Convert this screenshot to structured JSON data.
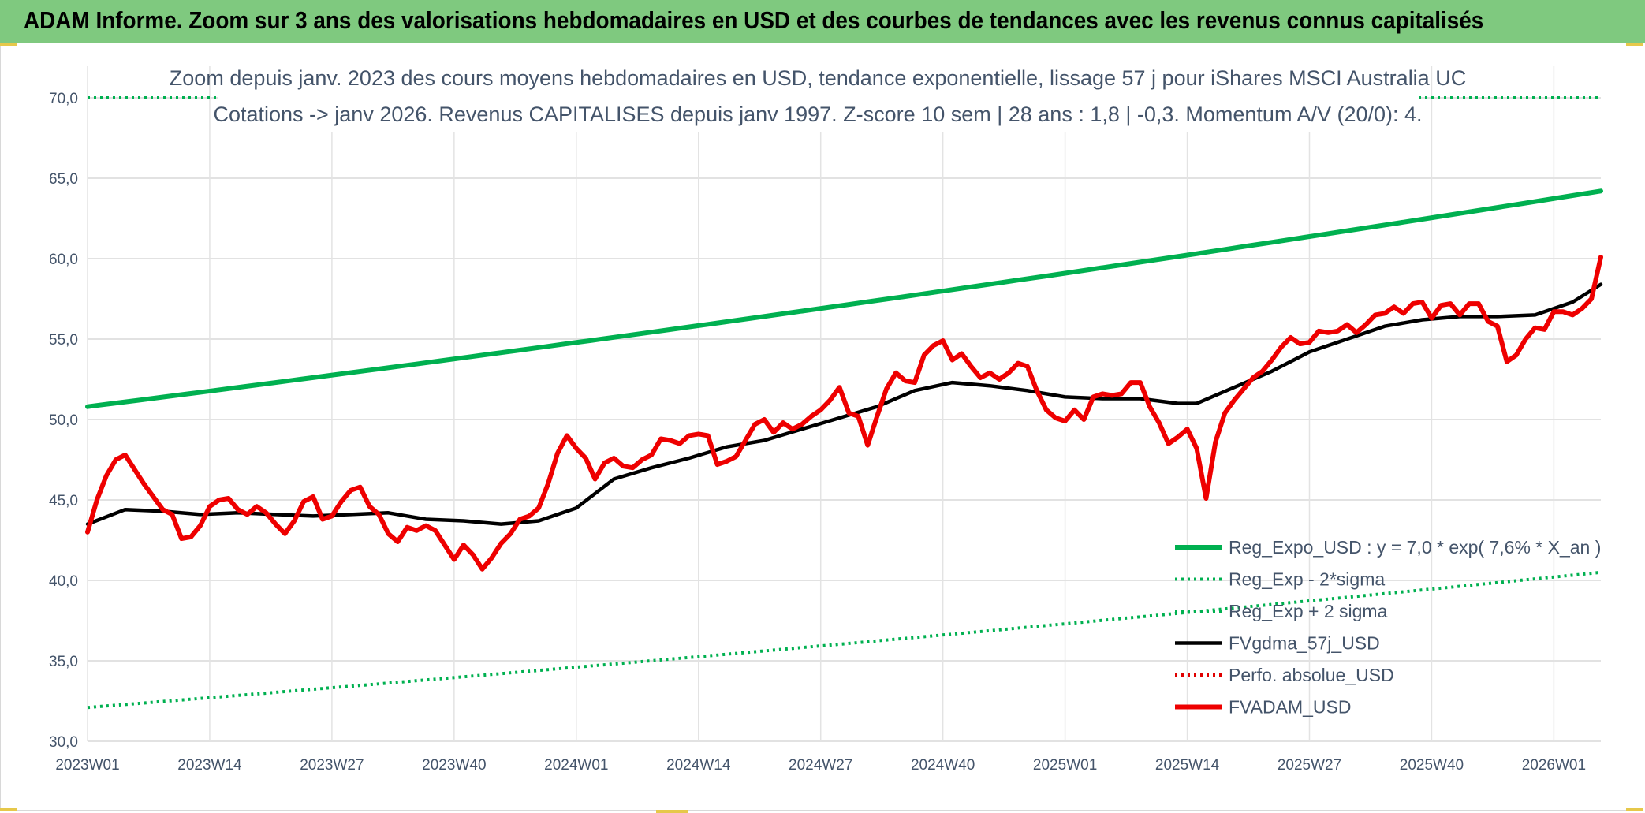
{
  "page_title": "ADAM Informe. Zoom sur 3 ans des valorisations hebdomadaires en USD et des courbes de tendances avec les revenus connus capitalisés",
  "chart_data": {
    "type": "line",
    "title_line1": "Zoom depuis janv. 2023 des cours moyens hebdomadaires en USD, tendance exponentielle, lissage 57 j pour iShares MSCI Australia UC",
    "title_line2": "Cotations -> janv 2026. Revenus CAPITALISES depuis janv 1997. Z-score 10 sem | 28 ans : 1,8 | -0,3. Momentum A/V (20/0): 4.",
    "x_tick_labels": [
      "2023W01",
      "2023W14",
      "2023W27",
      "2023W40",
      "2024W01",
      "2024W14",
      "2024W27",
      "2024W40",
      "2025W01",
      "2025W14",
      "2025W27",
      "2025W40",
      "2026W01"
    ],
    "x_range_weeks": [
      0,
      161
    ],
    "y_tick_labels": [
      "30,0",
      "35,0",
      "40,0",
      "45,0",
      "50,0",
      "55,0",
      "60,0",
      "65,0",
      "70,0"
    ],
    "ylim": [
      30,
      70
    ],
    "series": [
      {
        "name": "Reg_Expo_USD : y = 7,0 * exp( 7,6% *  X_an )",
        "color": "#00b050",
        "style": "solid-thick",
        "x": [
          0,
          161
        ],
        "values": [
          50.8,
          64.2
        ],
        "note": "exponential trend"
      },
      {
        "name": "Reg_Exp - 2*sigma",
        "color": "#00b050",
        "style": "dotted",
        "x": [
          0,
          161
        ],
        "values": [
          32.1,
          40.5
        ]
      },
      {
        "name": "Reg_Exp + 2 sigma",
        "color": "#00b050",
        "style": "dotted",
        "x": [
          0,
          161
        ],
        "values": [
          70.0,
          70.0
        ],
        "note": "clipped at top of axis"
      },
      {
        "name": "FVgdma_57j_USD",
        "color": "#000000",
        "style": "solid",
        "x": [
          0,
          4,
          8,
          12,
          16,
          20,
          24,
          28,
          32,
          36,
          40,
          44,
          48,
          52,
          56,
          60,
          64,
          68,
          72,
          76,
          80,
          84,
          88,
          92,
          96,
          100,
          104,
          108,
          112,
          116,
          118,
          122,
          126,
          130,
          134,
          138,
          142,
          146,
          150,
          154,
          158,
          161
        ],
        "values": [
          43.5,
          44.4,
          44.3,
          44.1,
          44.2,
          44.1,
          44.0,
          44.1,
          44.2,
          43.8,
          43.7,
          43.5,
          43.7,
          44.5,
          46.3,
          47.0,
          47.6,
          48.3,
          48.7,
          49.4,
          50.1,
          50.8,
          51.8,
          52.3,
          52.1,
          51.8,
          51.4,
          51.3,
          51.3,
          51.0,
          51.0,
          52.0,
          53.0,
          54.2,
          55.0,
          55.8,
          56.2,
          56.4,
          56.4,
          56.5,
          57.3,
          58.4
        ]
      },
      {
        "name": "Perfo. absolue_USD",
        "color": "#e00000",
        "style": "dotted",
        "x": [],
        "values": []
      },
      {
        "name": "FVADAM_USD",
        "color": "#ee0000",
        "style": "solid-thick",
        "x": [
          0,
          1,
          2,
          3,
          4,
          5,
          6,
          7,
          8,
          9,
          10,
          11,
          12,
          13,
          14,
          15,
          16,
          17,
          18,
          19,
          20,
          21,
          22,
          23,
          24,
          25,
          26,
          27,
          28,
          29,
          30,
          31,
          32,
          33,
          34,
          35,
          36,
          37,
          38,
          39,
          40,
          41,
          42,
          43,
          44,
          45,
          46,
          47,
          48,
          49,
          50,
          51,
          52,
          53,
          54,
          55,
          56,
          57,
          58,
          59,
          60,
          61,
          62,
          63,
          64,
          65,
          66,
          67,
          68,
          69,
          70,
          71,
          72,
          73,
          74,
          75,
          76,
          77,
          78,
          79,
          80,
          81,
          82,
          83,
          84,
          85,
          86,
          87,
          88,
          89,
          90,
          91,
          92,
          93,
          94,
          95,
          96,
          97,
          98,
          99,
          100,
          101,
          102,
          103,
          104,
          105,
          106,
          107,
          108,
          109,
          110,
          111,
          112,
          113,
          114,
          115,
          116,
          117,
          118,
          119,
          120,
          121,
          122,
          123,
          124,
          125,
          126,
          127,
          128,
          129,
          130,
          131,
          132,
          133,
          134,
          135,
          136,
          137,
          138,
          139,
          140,
          141,
          142,
          143,
          144,
          145,
          146,
          147,
          148,
          149,
          150,
          151,
          152,
          153,
          154,
          155,
          156,
          157,
          158,
          159,
          160,
          161
        ],
        "values": [
          43.0,
          45.0,
          46.5,
          47.5,
          47.8,
          46.9,
          46.0,
          45.2,
          44.4,
          44.1,
          42.6,
          42.7,
          43.4,
          44.6,
          45.0,
          45.1,
          44.4,
          44.1,
          44.6,
          44.2,
          43.5,
          42.9,
          43.7,
          44.9,
          45.2,
          43.8,
          44.0,
          44.9,
          45.6,
          45.8,
          44.6,
          44.1,
          42.9,
          42.4,
          43.3,
          43.1,
          43.4,
          43.1,
          42.2,
          41.3,
          42.2,
          41.6,
          40.7,
          41.4,
          42.3,
          42.9,
          43.8,
          44.0,
          44.5,
          46.0,
          47.9,
          49.0,
          48.2,
          47.6,
          46.3,
          47.3,
          47.6,
          47.1,
          47.0,
          47.5,
          47.8,
          48.8,
          48.7,
          48.5,
          49.0,
          49.1,
          49.0,
          47.2,
          47.4,
          47.7,
          48.7,
          49.7,
          50.0,
          49.2,
          49.8,
          49.4,
          49.7,
          50.2,
          50.6,
          51.2,
          52.0,
          50.4,
          50.2,
          48.4,
          50.2,
          51.9,
          52.9,
          52.4,
          52.3,
          54.0,
          54.6,
          54.9,
          53.7,
          54.1,
          53.3,
          52.6,
          52.9,
          52.5,
          52.9,
          53.5,
          53.3,
          51.8,
          50.6,
          50.1,
          49.9,
          50.6,
          50.0,
          51.4,
          51.6,
          51.5,
          51.6,
          52.3,
          52.3,
          50.8,
          49.8,
          48.5,
          48.9,
          49.4,
          48.2,
          45.1,
          48.6,
          50.4,
          51.2,
          51.9,
          52.6,
          53.0,
          53.7,
          54.5,
          55.1,
          54.7,
          54.8,
          55.5,
          55.4,
          55.5,
          55.9,
          55.4,
          55.9,
          56.5,
          56.6,
          57.0,
          56.6,
          57.2,
          57.3,
          56.3,
          57.1,
          57.2,
          56.5,
          57.2,
          57.2,
          56.1,
          55.8,
          53.6,
          54.0,
          55.0,
          55.7,
          55.6,
          56.7,
          56.7,
          56.5,
          56.9,
          57.5,
          60.1
        ]
      }
    ],
    "legend_position": "bottom-right",
    "grid": true
  }
}
